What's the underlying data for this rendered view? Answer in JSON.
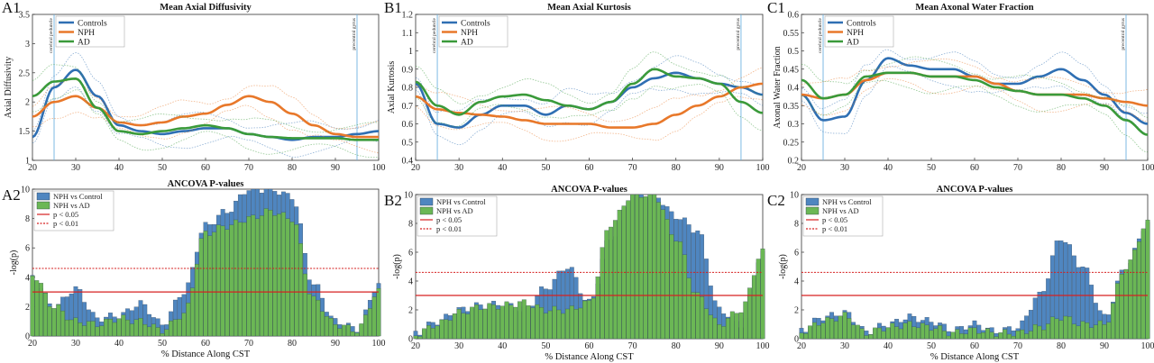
{
  "colors": {
    "controls": "#2f6fb3",
    "nph": "#e8782a",
    "ad": "#3a9a3a",
    "bar_nph_control": "#4f86c0",
    "bar_nph_ad": "#6bb755",
    "threshold": "#d62020",
    "landmark": "#6fb3e0"
  },
  "shared": {
    "xlabel": "% Distance Along CST",
    "x_ticks": [
      20,
      30,
      40,
      50,
      60,
      70,
      80,
      90,
      100
    ],
    "landmark_left": "cerebral peduncle",
    "landmark_right": "precentral gyrus",
    "landmark_left_x": 25,
    "landmark_right_x": 95,
    "pvalue_title": "ANCOVA P-values",
    "pvalue_ylabel": "-log(p)",
    "p005": "p < 0.05",
    "p001": "p < 0.01",
    "p005_value": 3.0,
    "p001_value": 4.6,
    "series_names": [
      "Controls",
      "NPH",
      "AD"
    ],
    "bar_names": [
      "NPH vs Control",
      "NPH vs AD"
    ]
  },
  "panels": [
    {
      "letter": "A1",
      "title": "Mean Axial Diffusivity",
      "ylabel": "Axial Diffusivity",
      "ylim": [
        1,
        3.5
      ],
      "y_ticks": [
        "1",
        "1.5",
        "2",
        "2.5",
        "3",
        "3.5"
      ]
    },
    {
      "letter": "B1",
      "title": "Mean Axial Kurtosis",
      "ylabel": "Axial Kurtosis",
      "ylim": [
        0.4,
        1.2
      ],
      "y_ticks": [
        "0.4",
        "0.5",
        "0.6",
        "0.7",
        "0.8",
        "0.9",
        "1",
        "1.1",
        "1.2"
      ]
    },
    {
      "letter": "C1",
      "title": "Mean Axonal Water Fraction",
      "ylabel": "Axonal Water Fraction",
      "ylim": [
        0.2,
        0.6
      ],
      "y_ticks": [
        "0.2",
        "0.25",
        "0.3",
        "0.35",
        "0.4",
        "0.45",
        "0.5",
        "0.55",
        "0.6"
      ]
    },
    {
      "letter": "A2",
      "title": "ANCOVA P-values",
      "ylim": [
        0,
        10
      ],
      "y_ticks": [
        "0",
        "2",
        "4",
        "6",
        "8",
        "10"
      ]
    },
    {
      "letter": "B2",
      "title": "ANCOVA P-values",
      "ylim": [
        0,
        10
      ],
      "y_ticks": [
        "0",
        "2",
        "4",
        "6",
        "8",
        "10"
      ]
    },
    {
      "letter": "C2",
      "title": "ANCOVA P-values",
      "ylim": [
        0,
        10
      ],
      "y_ticks": [
        "0",
        "2",
        "4",
        "6",
        "8",
        "10"
      ]
    }
  ],
  "chart_data": [
    {
      "type": "line",
      "id": "A1",
      "title": "Mean Axial Diffusivity",
      "ylabel": "Axial Diffusivity",
      "xlim": [
        20,
        100
      ],
      "ylim": [
        1,
        3.5
      ],
      "x": [
        20,
        25,
        30,
        35,
        40,
        45,
        50,
        55,
        60,
        65,
        70,
        75,
        80,
        85,
        90,
        95,
        100
      ],
      "series": [
        {
          "name": "Controls",
          "values": [
            1.4,
            2.25,
            2.55,
            2.1,
            1.6,
            1.5,
            1.45,
            1.5,
            1.55,
            1.55,
            1.45,
            1.4,
            1.35,
            1.4,
            1.4,
            1.45,
            1.5
          ]
        },
        {
          "name": "NPH",
          "values": [
            1.75,
            2.0,
            2.1,
            1.9,
            1.65,
            1.6,
            1.65,
            1.75,
            1.8,
            1.95,
            2.1,
            2.0,
            1.8,
            1.6,
            1.45,
            1.4,
            1.4
          ]
        },
        {
          "name": "AD",
          "values": [
            2.1,
            2.35,
            2.4,
            1.9,
            1.5,
            1.45,
            1.5,
            1.55,
            1.6,
            1.55,
            1.45,
            1.4,
            1.38,
            1.38,
            1.38,
            1.35,
            1.35
          ]
        }
      ]
    },
    {
      "type": "line",
      "id": "B1",
      "title": "Mean Axial Kurtosis",
      "ylabel": "Axial Kurtosis",
      "xlim": [
        20,
        100
      ],
      "ylim": [
        0.4,
        1.2
      ],
      "x": [
        20,
        25,
        30,
        35,
        40,
        45,
        50,
        55,
        60,
        65,
        70,
        75,
        80,
        85,
        90,
        95,
        100
      ],
      "series": [
        {
          "name": "Controls",
          "values": [
            0.82,
            0.6,
            0.58,
            0.65,
            0.7,
            0.7,
            0.65,
            0.7,
            0.68,
            0.72,
            0.8,
            0.85,
            0.88,
            0.85,
            0.82,
            0.8,
            0.76
          ]
        },
        {
          "name": "NPH",
          "values": [
            0.75,
            0.68,
            0.66,
            0.65,
            0.64,
            0.62,
            0.6,
            0.6,
            0.6,
            0.58,
            0.58,
            0.6,
            0.65,
            0.7,
            0.75,
            0.8,
            0.82
          ]
        },
        {
          "name": "AD",
          "values": [
            0.83,
            0.7,
            0.65,
            0.72,
            0.75,
            0.76,
            0.73,
            0.7,
            0.68,
            0.72,
            0.82,
            0.9,
            0.86,
            0.85,
            0.82,
            0.72,
            0.66
          ]
        }
      ]
    },
    {
      "type": "line",
      "id": "C1",
      "title": "Mean Axonal Water Fraction",
      "ylabel": "Axonal Water Fraction",
      "xlim": [
        20,
        100
      ],
      "ylim": [
        0.2,
        0.6
      ],
      "x": [
        20,
        25,
        30,
        35,
        40,
        45,
        50,
        55,
        60,
        65,
        70,
        75,
        80,
        85,
        90,
        95,
        100
      ],
      "series": [
        {
          "name": "Controls",
          "values": [
            0.38,
            0.31,
            0.32,
            0.42,
            0.48,
            0.46,
            0.45,
            0.45,
            0.43,
            0.41,
            0.41,
            0.43,
            0.45,
            0.42,
            0.38,
            0.33,
            0.3
          ]
        },
        {
          "name": "NPH",
          "values": [
            0.38,
            0.37,
            0.38,
            0.42,
            0.44,
            0.44,
            0.43,
            0.43,
            0.43,
            0.41,
            0.39,
            0.38,
            0.38,
            0.38,
            0.37,
            0.36,
            0.35
          ]
        },
        {
          "name": "AD",
          "values": [
            0.42,
            0.37,
            0.38,
            0.43,
            0.44,
            0.44,
            0.43,
            0.43,
            0.42,
            0.4,
            0.39,
            0.38,
            0.38,
            0.37,
            0.35,
            0.31,
            0.27
          ]
        }
      ]
    },
    {
      "type": "bar",
      "id": "A2",
      "title": "ANCOVA P-values",
      "ylabel": "-log(p)",
      "xlim": [
        20,
        100
      ],
      "ylim": [
        0,
        10
      ],
      "x": [
        20,
        25,
        30,
        35,
        40,
        45,
        50,
        55,
        60,
        65,
        70,
        75,
        80,
        85,
        90,
        95,
        100
      ],
      "series": [
        {
          "name": "NPH vs Control",
          "values": [
            4.0,
            2.0,
            3.2,
            1.2,
            1.4,
            2.2,
            0.8,
            3.0,
            7.5,
            8.5,
            10.0,
            10.0,
            9.5,
            3.5,
            1.0,
            0.5,
            3.5
          ]
        },
        {
          "name": "NPH vs AD",
          "values": [
            4.2,
            2.0,
            1.0,
            0.8,
            1.2,
            1.0,
            0.4,
            1.5,
            7.0,
            7.5,
            8.0,
            8.5,
            8.0,
            2.5,
            0.8,
            0.4,
            3.0
          ]
        }
      ]
    },
    {
      "type": "bar",
      "id": "B2",
      "title": "ANCOVA P-values",
      "ylabel": "-log(p)",
      "xlim": [
        20,
        100
      ],
      "ylim": [
        0,
        10
      ],
      "x": [
        20,
        25,
        30,
        35,
        40,
        45,
        50,
        55,
        60,
        65,
        70,
        75,
        80,
        85,
        90,
        95,
        100
      ],
      "series": [
        {
          "name": "NPH vs Control",
          "values": [
            0.4,
            1.2,
            2.0,
            2.3,
            2.4,
            2.0,
            3.5,
            5.0,
            2.5,
            7.0,
            10.0,
            10.0,
            8.5,
            7.5,
            2.0,
            1.0,
            6.0
          ]
        },
        {
          "name": "NPH vs AD",
          "values": [
            0.3,
            1.0,
            1.8,
            2.2,
            2.3,
            2.5,
            2.0,
            2.0,
            2.5,
            8.0,
            10.0,
            10.0,
            7.0,
            3.0,
            1.0,
            2.0,
            6.0
          ]
        }
      ]
    },
    {
      "type": "bar",
      "id": "C2",
      "title": "ANCOVA P-values",
      "ylabel": "-log(p)",
      "xlim": [
        20,
        100
      ],
      "ylim": [
        0,
        10
      ],
      "x": [
        20,
        25,
        30,
        35,
        40,
        45,
        50,
        55,
        60,
        65,
        70,
        75,
        80,
        85,
        90,
        95,
        100
      ],
      "series": [
        {
          "name": "NPH vs Control",
          "values": [
            0.6,
            1.5,
            1.8,
            0.5,
            1.0,
            1.5,
            1.2,
            0.6,
            1.0,
            0.5,
            0.8,
            3.0,
            7.0,
            5.0,
            1.5,
            5.0,
            8.0
          ]
        },
        {
          "name": "NPH vs AD",
          "values": [
            0.5,
            1.2,
            1.6,
            0.4,
            0.8,
            1.0,
            0.8,
            0.4,
            0.6,
            0.4,
            0.4,
            0.8,
            1.5,
            1.0,
            1.0,
            5.0,
            8.0
          ]
        }
      ]
    }
  ]
}
